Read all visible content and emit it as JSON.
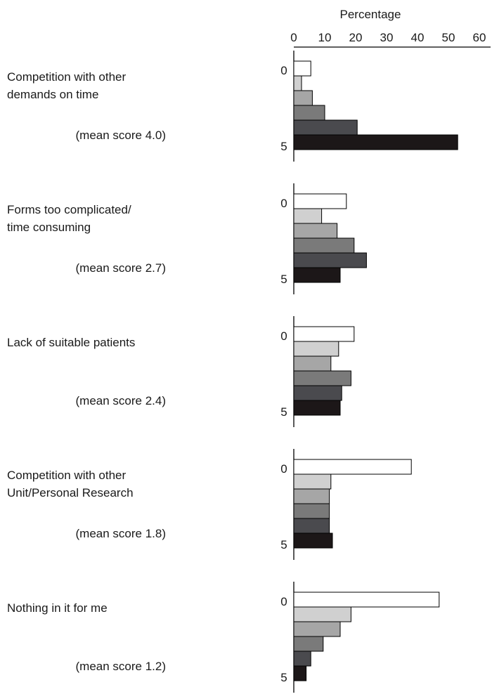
{
  "chart_data": {
    "type": "bar",
    "orientation": "horizontal",
    "xlabel": "Percentage",
    "xlim": [
      0,
      60
    ],
    "xticks": [
      "0",
      "10",
      "20",
      "30",
      "40",
      "50",
      "60"
    ],
    "score_labels": [
      "0",
      "5"
    ],
    "score_levels": [
      0,
      1,
      2,
      3,
      4,
      5
    ],
    "level_colors": [
      "#ffffff",
      "#d0d0d0",
      "#a6a6a6",
      "#7a7a7a",
      "#4a4a4e",
      "#1c1718"
    ],
    "panels": [
      {
        "label_lines": [
          "Competition with other",
          "demands on time"
        ],
        "mean": "(mean score 4.0)",
        "values": [
          5.5,
          2.5,
          6,
          10,
          20.5,
          53
        ]
      },
      {
        "label_lines": [
          "Forms too complicated/",
          "time consuming"
        ],
        "mean": "(mean score 2.7)",
        "values": [
          17,
          9,
          14,
          19.5,
          23.5,
          15
        ]
      },
      {
        "label_lines": [
          "Lack of suitable patients"
        ],
        "mean": "(mean score 2.4)",
        "values": [
          19.5,
          14.5,
          12,
          18.5,
          15.5,
          15
        ]
      },
      {
        "label_lines": [
          "Competition with other",
          "Unit/Personal Research"
        ],
        "mean": "(mean score 1.8)",
        "values": [
          38,
          12,
          11.5,
          11.5,
          11.5,
          12.5
        ]
      },
      {
        "label_lines": [
          "Nothing in it for me"
        ],
        "mean": "(mean score 1.2)",
        "values": [
          47,
          18.5,
          15,
          9.5,
          5.5,
          4
        ]
      }
    ]
  }
}
